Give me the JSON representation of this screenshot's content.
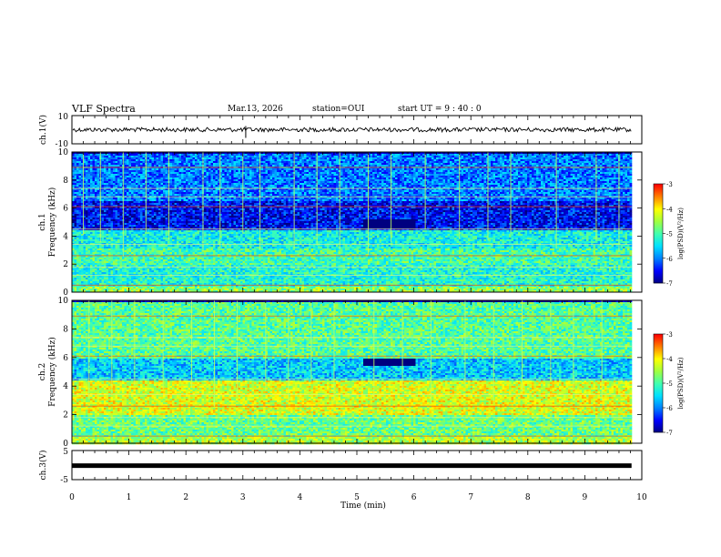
{
  "header": {
    "title": "VLF Spectra",
    "date": "Mar.13, 2026",
    "station": "station=OUI",
    "start": "start  UT =   9 : 40 : 0"
  },
  "colors": {
    "colormap": [
      "#000080",
      "#0000ff",
      "#0080ff",
      "#00e0ff",
      "#40ffb0",
      "#a0ff40",
      "#ffff00",
      "#ff8000",
      "#ff0000",
      "#ffffff"
    ],
    "axis": "#000000"
  },
  "chart_data": [
    {
      "type": "line",
      "panel": "ch1-waveform",
      "ylabel": "ch.1(V)",
      "ylim": [
        -10,
        10
      ],
      "yticks": [
        "10",
        "-10"
      ],
      "xlim": [
        0,
        10
      ],
      "series": [
        {
          "approx_level_V": [
            -1.5,
            1.5
          ]
        }
      ]
    },
    {
      "type": "heatmap",
      "panel": "ch1-spectrogram",
      "ylabel": "ch.1 Frequency (kHz)",
      "ylim": [
        0,
        10
      ],
      "yticks": [
        "0",
        "2",
        "4",
        "6",
        "8",
        "10"
      ],
      "xlim": [
        0,
        10
      ],
      "colorbar": {
        "label": "log(PSD)(V²/Hz)",
        "range": [
          -7,
          -3
        ],
        "ticks": [
          "-3",
          "-4",
          "-5",
          "-6",
          "-7"
        ]
      },
      "frequency_profile_log_psd": [
        {
          "f_khz": [
            0.0,
            0.5
          ],
          "level": -4.6
        },
        {
          "f_khz": [
            0.5,
            2.0
          ],
          "level": -5.2
        },
        {
          "f_khz": [
            2.0,
            3.2
          ],
          "level": -5.0
        },
        {
          "f_khz": [
            3.2,
            4.5
          ],
          "level": -5.3
        },
        {
          "f_khz": [
            4.5,
            6.5
          ],
          "level": -6.5
        },
        {
          "f_khz": [
            6.5,
            10.0
          ],
          "level": -6.0
        }
      ],
      "quiet_region": {
        "t_min": [
          5.1,
          6.0
        ],
        "f_khz": [
          4.6,
          5.3
        ]
      },
      "vertical_streaks_t_min": [
        0.2,
        0.5,
        0.9,
        1.3,
        1.7,
        2.3,
        2.6,
        3.0,
        3.3,
        3.9,
        4.3,
        4.7,
        5.2,
        5.6,
        6.2,
        6.8,
        7.3,
        7.7,
        8.5,
        9.2,
        9.6
      ]
    },
    {
      "type": "heatmap",
      "panel": "ch2-spectrogram",
      "ylabel": "ch.2 Frequency (kHz)",
      "ylim": [
        0,
        10
      ],
      "yticks": [
        "0",
        "2",
        "4",
        "6",
        "8",
        "10"
      ],
      "xlim": [
        0,
        10
      ],
      "colorbar": {
        "label": "log(PSD)(V²/Hz)",
        "range": [
          -7,
          -3
        ],
        "ticks": [
          "-3",
          "-4",
          "-5",
          "-6",
          "-7"
        ]
      },
      "frequency_profile_log_psd": [
        {
          "f_khz": [
            0.0,
            0.5
          ],
          "level": -4.4
        },
        {
          "f_khz": [
            0.5,
            2.0
          ],
          "level": -4.8
        },
        {
          "f_khz": [
            2.0,
            4.5
          ],
          "level": -4.2
        },
        {
          "f_khz": [
            4.5,
            6.0
          ],
          "level": -5.6
        },
        {
          "f_khz": [
            6.0,
            10.0
          ],
          "level": -4.9
        }
      ],
      "quiet_region": {
        "t_min": [
          5.1,
          6.0
        ],
        "f_khz": [
          5.5,
          6.0
        ]
      },
      "vertical_streaks_t_min": [
        0.3,
        0.7,
        1.1,
        1.6,
        2.1,
        2.5,
        2.9,
        3.4,
        3.8,
        4.2,
        4.6,
        5.3,
        5.8,
        6.3,
        6.9,
        7.4,
        7.9,
        8.4,
        8.8,
        9.3
      ]
    },
    {
      "type": "line",
      "panel": "ch3-waveform",
      "ylabel": "ch.3(V)",
      "ylim": [
        -5,
        5
      ],
      "yticks": [
        "5",
        "-5"
      ],
      "xlim": [
        0,
        10
      ],
      "series": [
        {
          "approx_level_V": [
            -0.3,
            0.3
          ]
        }
      ]
    }
  ],
  "xaxis": {
    "label": "Time  (min)",
    "ticks": [
      "0",
      "1",
      "2",
      "3",
      "4",
      "5",
      "6",
      "7",
      "8",
      "9",
      "10"
    ]
  }
}
